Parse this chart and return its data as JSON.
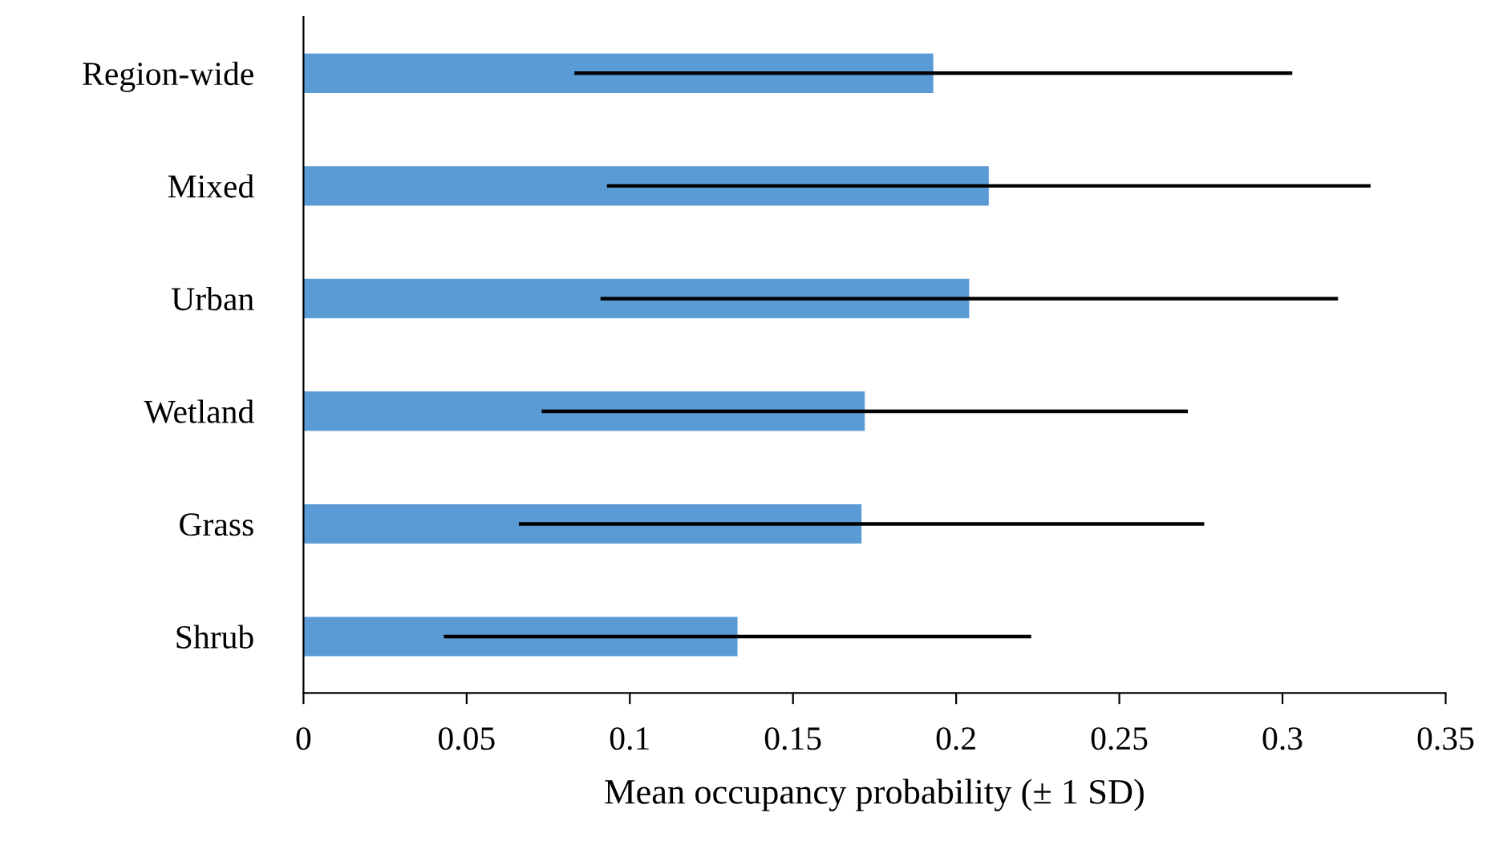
{
  "chart_data": {
    "type": "bar",
    "orientation": "horizontal",
    "categories": [
      "Region-wide",
      "Mixed",
      "Urban",
      "Wetland",
      "Grass",
      "Shrub"
    ],
    "values": [
      0.193,
      0.21,
      0.204,
      0.172,
      0.171,
      0.133
    ],
    "errors": [
      0.11,
      0.117,
      0.113,
      0.099,
      0.105,
      0.09
    ],
    "color": "#5b9bd5",
    "xlabel": "Mean occupancy probability (± 1 SD)",
    "xlim": [
      0,
      0.35
    ],
    "xticks": [
      {
        "value": 0,
        "label": "0"
      },
      0.05,
      0.1,
      0.15,
      0.2,
      0.25,
      0.3,
      0.35
    ],
    "grid": false,
    "legend": false
  }
}
